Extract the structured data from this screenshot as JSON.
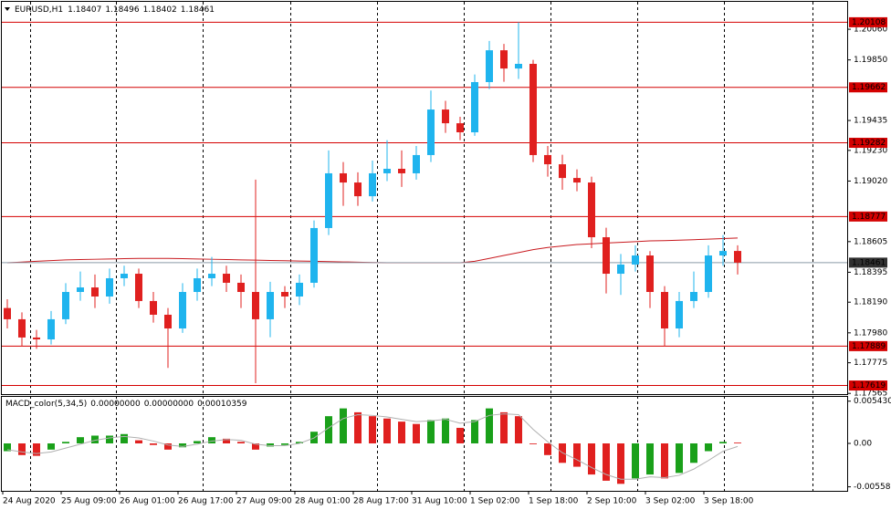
{
  "chart_data": {
    "type": "candlestick",
    "title": "EURUSD,H1",
    "header_values": [
      1.18407,
      1.18496,
      1.18402,
      1.18461
    ],
    "open": [
      1.1815,
      1.18073,
      1.17948,
      1.17935,
      1.18073,
      1.1826,
      1.18291,
      1.18229,
      1.18354,
      1.18385,
      1.18198,
      1.18104,
      1.1801,
      1.1826,
      1.18354,
      1.18385,
      1.18323,
      1.1826,
      1.18073,
      1.1826,
      1.18229,
      1.18323,
      1.18698,
      1.19073,
      1.1901,
      1.18916,
      1.19073,
      1.19104,
      1.19073,
      1.19198,
      1.1951,
      1.19416,
      1.19354,
      1.19698,
      1.19916,
      1.19791,
      1.19823,
      1.19198,
      1.19135,
      1.19041,
      1.1901,
      1.18635,
      1.18385,
      1.18448,
      1.1851,
      1.1826,
      1.1801,
      1.18198,
      1.1826,
      1.1851,
      1.18541
    ],
    "high": [
      1.1821,
      1.1812,
      1.18,
      1.1813,
      1.1832,
      1.184,
      1.1838,
      1.1842,
      1.1844,
      1.1842,
      1.1826,
      1.1815,
      1.1832,
      1.1842,
      1.185,
      1.1844,
      1.1838,
      1.1903,
      1.1833,
      1.183,
      1.1838,
      1.1875,
      1.1923,
      1.1915,
      1.1908,
      1.1916,
      1.193,
      1.1923,
      1.1926,
      1.1964,
      1.1957,
      1.1946,
      1.1975,
      1.1998,
      1.1996,
      1.20108,
      1.1985,
      1.1926,
      1.192,
      1.191,
      1.1905,
      1.187,
      1.1852,
      1.1858,
      1.1854,
      1.183,
      1.1826,
      1.184,
      1.1858,
      1.1865,
      1.1858
    ],
    "low": [
      1.1801,
      1.1789,
      1.1787,
      1.179,
      1.1804,
      1.182,
      1.1815,
      1.1818,
      1.183,
      1.1815,
      1.1805,
      1.1774,
      1.1798,
      1.182,
      1.183,
      1.1826,
      1.1815,
      1.17635,
      1.1795,
      1.1815,
      1.1817,
      1.1829,
      1.1865,
      1.1885,
      1.1885,
      1.1888,
      1.1902,
      1.1898,
      1.1903,
      1.1915,
      1.1935,
      1.193,
      1.1933,
      1.1965,
      1.197,
      1.1972,
      1.1915,
      1.1905,
      1.1896,
      1.1895,
      1.1856,
      1.1825,
      1.1824,
      1.184,
      1.1815,
      1.17889,
      1.1795,
      1.1815,
      1.1822,
      1.1844,
      1.1838
    ],
    "close": [
      1.18073,
      1.17948,
      1.17935,
      1.18073,
      1.1826,
      1.18291,
      1.18229,
      1.18354,
      1.18385,
      1.18198,
      1.18104,
      1.1801,
      1.1826,
      1.18354,
      1.18385,
      1.18323,
      1.1826,
      1.18073,
      1.1826,
      1.18229,
      1.18323,
      1.18698,
      1.19073,
      1.1901,
      1.18916,
      1.19073,
      1.19104,
      1.19073,
      1.19198,
      1.1951,
      1.19416,
      1.19354,
      1.19698,
      1.19916,
      1.19791,
      1.19823,
      1.19198,
      1.19135,
      1.19041,
      1.1901,
      1.18635,
      1.18385,
      1.18448,
      1.1851,
      1.1826,
      1.1801,
      1.18198,
      1.1826,
      1.1851,
      1.18541,
      1.18461
    ],
    "up_color": "#1fb4ee",
    "down_color": "#e0201f",
    "ma": [
      1.1846,
      1.18465,
      1.1847,
      1.18475,
      1.1848,
      1.18482,
      1.18484,
      1.18486,
      1.18488,
      1.1849,
      1.1849,
      1.1849,
      1.18488,
      1.18486,
      1.18484,
      1.18482,
      1.1848,
      1.18478,
      1.18476,
      1.18474,
      1.18472,
      1.1847,
      1.18468,
      1.18466,
      1.18464,
      1.18462,
      1.1846,
      1.1846,
      1.1846,
      1.1846,
      1.1846,
      1.1846,
      1.1847,
      1.1849,
      1.1851,
      1.1853,
      1.1855,
      1.18565,
      1.18575,
      1.18585,
      1.1859,
      1.18595,
      1.186,
      1.18605,
      1.1861,
      1.18612,
      1.18615,
      1.18618,
      1.18622,
      1.18626,
      1.1863
    ],
    "ma_color": "#c8191e",
    "ylim": [
      1.1756,
      1.20248
    ],
    "yticks": [
      {
        "value": 1.2006,
        "label": "1.20060"
      },
      {
        "value": 1.1985,
        "label": "1.19850"
      },
      {
        "value": 1.19435,
        "label": "1.19435"
      },
      {
        "value": 1.1923,
        "label": "1.19230"
      },
      {
        "value": 1.1902,
        "label": "1.19020"
      },
      1.18605,
      1.18395,
      {
        "value": 1.1819,
        "label": "1.18190"
      },
      {
        "value": 1.1798,
        "label": "1.17980"
      },
      1.17775,
      1.17565
    ],
    "price_lines": [
      1.20108,
      1.19662,
      1.19282,
      1.18777,
      1.17889,
      1.17619
    ],
    "price_line_color": "#d40000",
    "current_price": 1.18461,
    "x_labels": [
      "24 Aug 2020",
      "25 Aug 09:00",
      "26 Aug 01:00",
      "26 Aug 17:00",
      "27 Aug 09:00",
      "28 Aug 01:00",
      "28 Aug 17:00",
      "31 Aug 10:00",
      "1 Sep 02:00",
      "1 Sep 18:00",
      "2 Sep 10:00",
      "3 Sep 02:00",
      "3 Sep 18:00"
    ],
    "macd": {
      "title": "MACD_color(5,34,5)",
      "readout": [
        {
          "value": 0,
          "label": "0.00000000"
        },
        {
          "value": 0,
          "label": "0.00000000"
        },
        0.00010359
      ],
      "histogram": [
        -0.001,
        -0.0015,
        -0.0016,
        -0.0008,
        0.0002,
        0.0008,
        0.001,
        0.001,
        0.0012,
        0.0004,
        -0.0002,
        -0.0008,
        -0.0005,
        0.0003,
        0.0008,
        0.0006,
        0.0002,
        -0.0008,
        -0.0004,
        -0.0002,
        0.0002,
        0.0015,
        0.0035,
        0.0045,
        0.004,
        0.0035,
        0.0032,
        0.0028,
        0.0025,
        0.003,
        0.0032,
        0.002,
        0.003,
        0.0045,
        0.004,
        0.0035,
        -0.0001,
        -0.0015,
        -0.0025,
        -0.003,
        -0.004,
        -0.0048,
        -0.0052,
        -0.0045,
        -0.004,
        -0.0045,
        -0.0038,
        -0.0025,
        -0.001,
        0.0002,
        0.0001
      ],
      "signal": [
        -0.0008,
        -0.0011,
        -0.0013,
        -0.0011,
        -0.0006,
        -0.0001,
        0.0004,
        0.0007,
        0.0009,
        0.0007,
        0.0003,
        -0.0002,
        -0.0004,
        -0.0001,
        0.0003,
        0.0005,
        0.0004,
        -0.0001,
        -0.0003,
        -0.0003,
        0.0,
        0.0007,
        0.002,
        0.0032,
        0.0037,
        0.0036,
        0.0034,
        0.0031,
        0.0028,
        0.0029,
        0.0031,
        0.0026,
        0.0028,
        0.0036,
        0.0038,
        0.0037,
        0.0018,
        0.0002,
        -0.0012,
        -0.0021,
        -0.0031,
        -0.004,
        -0.0046,
        -0.0046,
        -0.0043,
        -0.0044,
        -0.0041,
        -0.0033,
        -0.0022,
        -0.001,
        -0.0004
      ],
      "rise_color": "#1aa01a",
      "fall_color": "#e0201f",
      "signal_color": "#b0b0b0",
      "ylim": [
        -0.0061,
        0.0061
      ],
      "yticks": [
        0.0054303,
        {
          "value": 0,
          "label": "0.00"
        },
        -0.0055826
      ]
    }
  }
}
